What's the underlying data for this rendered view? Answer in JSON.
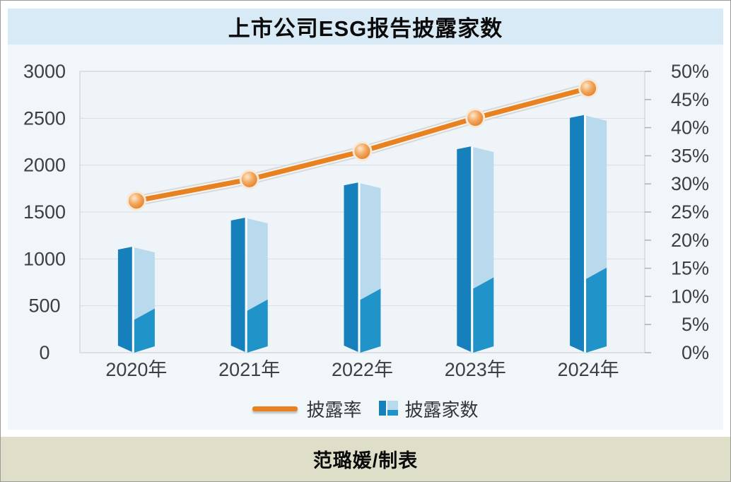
{
  "title": "上市公司ESG报告披露家数",
  "legend": {
    "line_label": "披露率",
    "bar_label": "披露家数"
  },
  "footer": {
    "credit": "范璐媛/制表"
  },
  "chart_data": {
    "type": "bar",
    "subtype": "3d-bar-with-line-combo",
    "title": "上市公司ESG报告披露家数",
    "categories": [
      "2020年",
      "2021年",
      "2022年",
      "2023年",
      "2024年"
    ],
    "series": [
      {
        "name": "披露家数",
        "type": "bar",
        "axis": "left",
        "values": [
          1130,
          1440,
          1815,
          2200,
          2535
        ]
      },
      {
        "name": "披露率",
        "type": "line",
        "axis": "right",
        "values_percent": [
          27.0,
          30.8,
          35.8,
          41.7,
          47.0
        ]
      }
    ],
    "left_axis": {
      "min": 0,
      "max": 3000,
      "step": 500,
      "tick_labels": [
        "3000",
        "2500",
        "2000",
        "1500",
        "1000",
        "500",
        "0"
      ]
    },
    "right_axis": {
      "min": 0,
      "max": 50,
      "step": 5,
      "tick_labels": [
        "50%",
        "45%",
        "40%",
        "35%",
        "30%",
        "25%",
        "20%",
        "15%",
        "10%",
        "5%",
        "0%"
      ]
    },
    "grid": "horizontal-only",
    "legend_position": "bottom-center"
  },
  "colors": {
    "title_bg": "#d8eaf6",
    "section_bg": "#f1f6f9",
    "footer_bg": "#dfdec9",
    "plot_bg": "#eef4f8",
    "plot_border": "#c5cbd1",
    "grid": "#d9dee3",
    "axis": "#a9b2b9",
    "text": "#3d4043",
    "bar_dark": "#1580bb",
    "bar_light": "#b9d9ec",
    "bar_shade": "#2093c9",
    "line": "#e8811f",
    "line_casing_outer": "#d8d8d8",
    "line_casing_inner": "#f6f6f6",
    "marker_center": "#fde8cb",
    "marker_mid": "#f2a860",
    "marker_edge": "#dd7418",
    "marker_ring": "#f7e8d7"
  }
}
